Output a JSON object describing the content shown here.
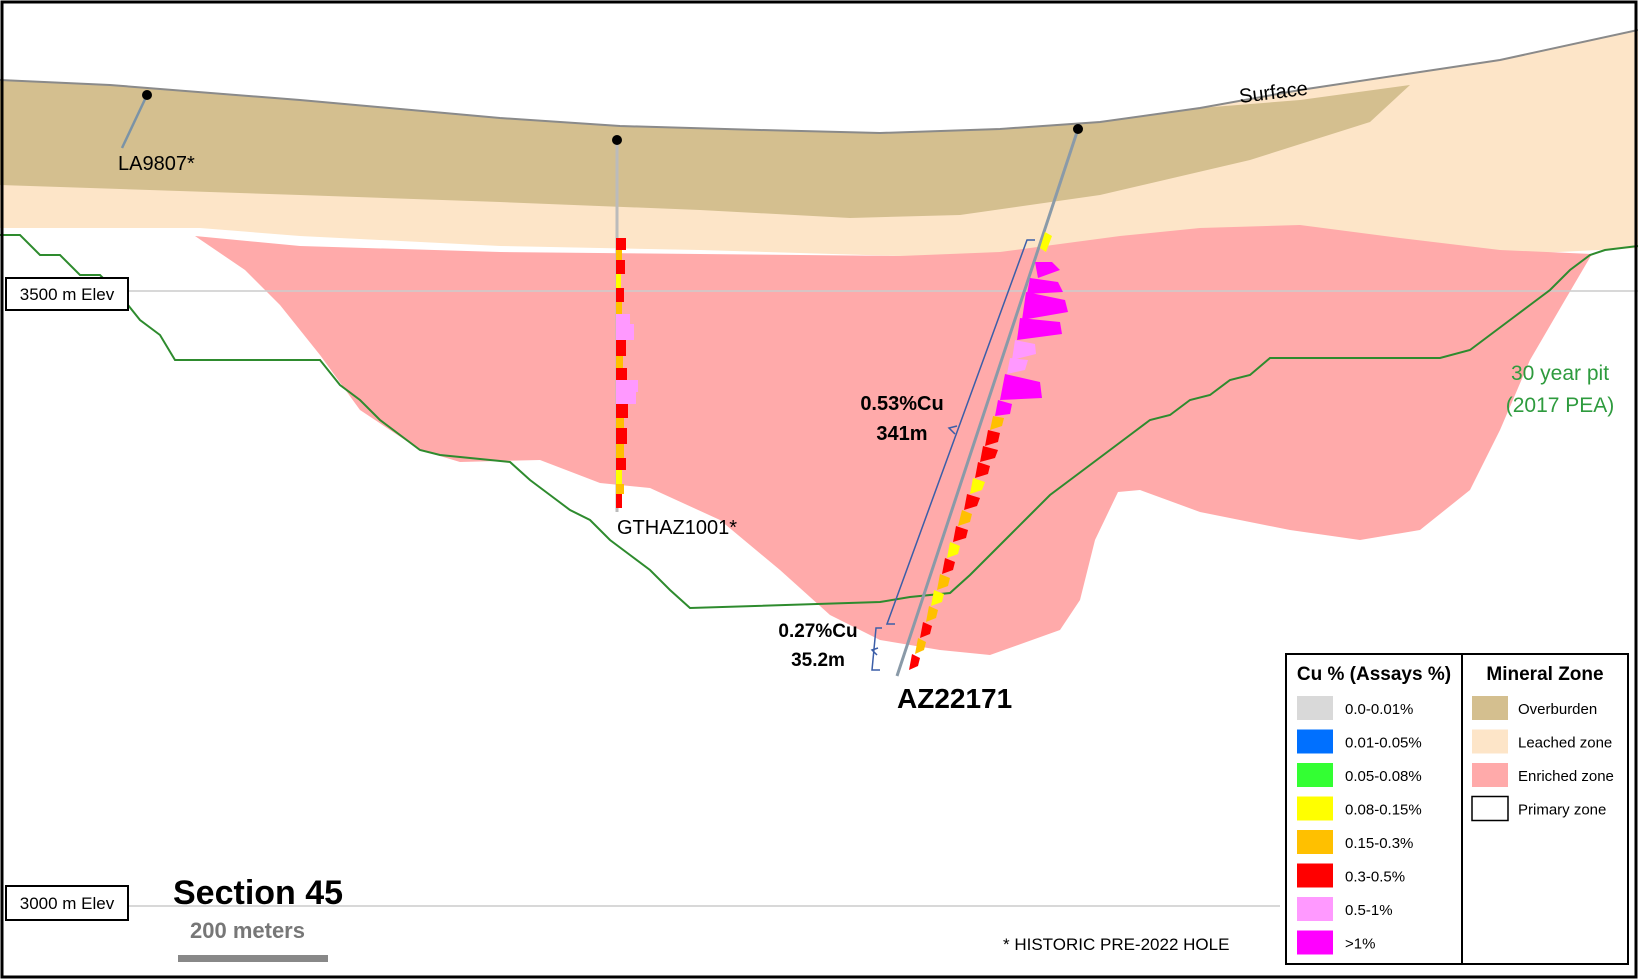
{
  "section": {
    "title": "Section 45",
    "scale_label": "200 meters"
  },
  "elevations": {
    "upper": "3500 m Elev",
    "lower": "3000 m Elev"
  },
  "surface_label": "Surface",
  "pit": {
    "line1": "30 year pit",
    "line2": "(2017 PEA)",
    "color": "#2e8b2e"
  },
  "holes": {
    "la9807": "LA9807*",
    "gthaz1001": "GTHAZ1001*",
    "az22171": "AZ22171"
  },
  "intercepts": {
    "main": {
      "grade": "0.53%Cu",
      "length": "341m"
    },
    "lower": {
      "grade": "0.27%Cu",
      "length": "35.2m"
    }
  },
  "footnote": "* HISTORIC PRE-2022 HOLE",
  "legend_cu": {
    "title": "Cu % (Assays %)",
    "items": [
      {
        "label": "0.0-0.01%",
        "color": "#d9d9d9"
      },
      {
        "label": "0.01-0.05%",
        "color": "#0070ff"
      },
      {
        "label": "0.05-0.08%",
        "color": "#33ff33"
      },
      {
        "label": "0.08-0.15%",
        "color": "#ffff00"
      },
      {
        "label": "0.15-0.3%",
        "color": "#ffc000"
      },
      {
        "label": "0.3-0.5%",
        "color": "#ff0000"
      },
      {
        "label": "0.5-1%",
        "color": "#ff99ff"
      },
      {
        "label": ">1%",
        "color": "#ff00ff"
      }
    ]
  },
  "legend_zone": {
    "title": "Mineral Zone",
    "items": [
      {
        "label": "Overburden",
        "color": "#d4bf8f"
      },
      {
        "label": "Leached zone",
        "color": "#fde5c8"
      },
      {
        "label": "Enriched zone",
        "color": "#ffaaaa"
      },
      {
        "label": "Primary zone",
        "color": "#ffffff"
      }
    ]
  }
}
